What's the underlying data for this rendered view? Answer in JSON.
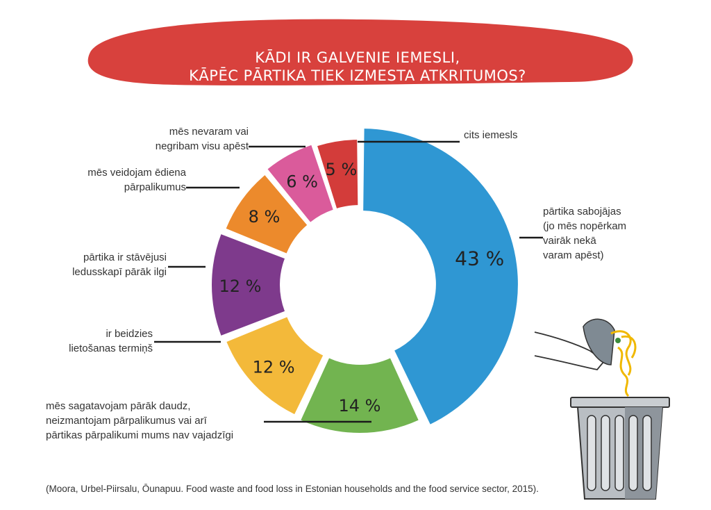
{
  "chart_data": {
    "type": "pie",
    "subtype": "donut",
    "title": "KĀDI IR GALVENIE IEMESLI, KĀPĒC PĀRTIKA TIEK IZMESTA ATKRITUMOS?",
    "title_lines": [
      "KĀDI IR GALVENIE IEMESLI,",
      "KĀPĒC PĀRTIKA TIEK IZMESTA ATKRITUMOS?"
    ],
    "slices": [
      {
        "label": "pārtika sabojājas (jo mēs nopērkam vairāk nekā varam apēst)",
        "label_lines": [
          "pārtika sabojājas",
          "(jo mēs nopērkam",
          "vairāk nekā",
          "varam apēst)"
        ],
        "value": 43,
        "value_label": "43 %",
        "color": "#2f97d3"
      },
      {
        "label": "mēs sagatavojam pārāk daudz, neizmantojam pārpalikumus vai arī pārtikas pārpalikumi mums nav vajadzīgi",
        "label_lines": [
          "mēs sagatavojam pārāk daudz,",
          "neizmantojam pārpalikumus vai arī",
          "pārtikas pārpalikumi mums nav vajadzīgi"
        ],
        "value": 14,
        "value_label": "14 %",
        "color": "#72b450"
      },
      {
        "label": "ir beidzies lietošanas termiņš",
        "label_lines": [
          "ir beidzies",
          "lietošanas termiņš"
        ],
        "value": 12,
        "value_label": "12 %",
        "color": "#f3b93a"
      },
      {
        "label": "pārtika ir stāvējusi ledusskapī pārāk ilgi",
        "label_lines": [
          "pārtika ir stāvējusi",
          "ledusskapī pārāk ilgi"
        ],
        "value": 12,
        "value_label": "12 %",
        "color": "#7e3a8c"
      },
      {
        "label": "mēs veidojam ēdiena pārpalikumus",
        "label_lines": [
          "mēs veidojam ēdiena",
          "pārpalikumus"
        ],
        "value": 8,
        "value_label": "8 %",
        "color": "#ec8a2c"
      },
      {
        "label": "mēs nevaram vai negribam visu apēst",
        "label_lines": [
          "mēs nevaram vai",
          "negribam visu apēst"
        ],
        "value": 6,
        "value_label": "6 %",
        "color": "#da5b9b"
      },
      {
        "label": "cits iemesls",
        "label_lines": [
          "cits iemesls"
        ],
        "value": 5,
        "value_label": "5 %",
        "color": "#d33c3a"
      }
    ],
    "title_color": "#d8413d"
  },
  "source": "(Moora, Urbel-Piirsalu, Ōunapuu. Food waste and food loss in Estonian households and the food service sector, 2015)."
}
